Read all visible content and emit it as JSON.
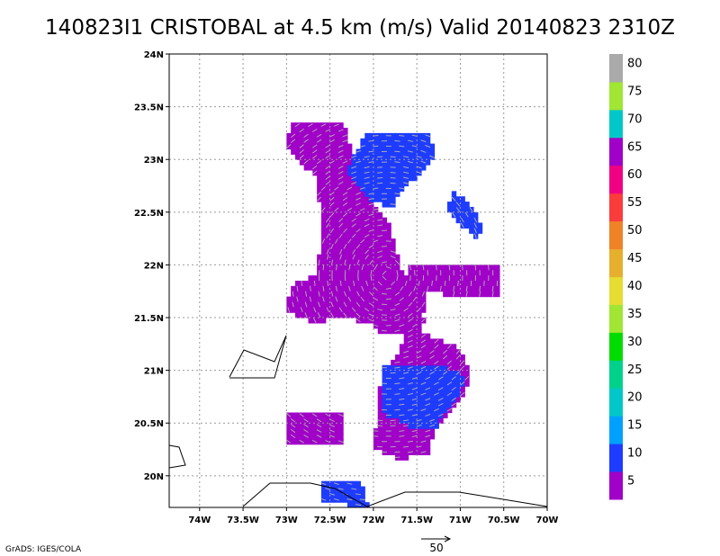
{
  "title": "140823I1 CRISTOBAL at 4.5 km (m/s) Valid 20140823 2310Z",
  "credit": "GrADS: IGES/COLA",
  "reference_vector_label": "50",
  "colors": {
    "border": "#000000",
    "grid": "#999999",
    "arrow": "#aaaaaa"
  },
  "chart_data": {
    "type": "heatmap",
    "title": "140823I1 CRISTOBAL at 4.5 km (m/s) Valid 20140823 2310Z",
    "x_axis": {
      "ticks": [
        -74,
        -73.5,
        -73,
        -72.5,
        -72,
        -71.5,
        -71,
        -70.5,
        -70
      ],
      "tick_labels": [
        "74W",
        "73.5W",
        "73W",
        "72.5W",
        "72W",
        "71.5W",
        "71W",
        "70.5W",
        "70W"
      ],
      "range": [
        -74.35,
        -70
      ]
    },
    "y_axis": {
      "ticks": [
        20,
        20.5,
        21,
        21.5,
        22,
        22.5,
        23,
        23.5,
        24
      ],
      "tick_labels": [
        "20N",
        "20.5N",
        "21N",
        "21.5N",
        "22N",
        "22.5N",
        "23N",
        "23.5N",
        "24N"
      ],
      "range": [
        19.7,
        24
      ]
    },
    "grid": true,
    "colorbar": {
      "levels": [
        5,
        10,
        15,
        20,
        25,
        30,
        35,
        40,
        45,
        50,
        55,
        60,
        65,
        70,
        75,
        80
      ],
      "colors": [
        "#a000c8",
        "#1e3cff",
        "#00a0ff",
        "#00c8c8",
        "#00d28c",
        "#00dc00",
        "#a0e632",
        "#e6dc32",
        "#e6af2d",
        "#f08228",
        "#fa3c3c",
        "#f00082",
        "#a000c8",
        "#00c8c8",
        "#a0e632",
        "#aaaaaa"
      ],
      "labels": [
        "5",
        "10",
        "15",
        "20",
        "25",
        "30",
        "35",
        "40",
        "45",
        "50",
        "55",
        "60",
        "65",
        "70",
        "75",
        "80"
      ]
    },
    "regions": [
      {
        "name": "main-west",
        "bin": 5,
        "polygon": [
          [
            -72.95,
            23.35
          ],
          [
            -72.35,
            23.35
          ],
          [
            -72.2,
            22.95
          ],
          [
            -72.0,
            22.55
          ],
          [
            -71.85,
            22.45
          ],
          [
            -71.7,
            22.0
          ],
          [
            -71.55,
            21.75
          ],
          [
            -71.4,
            21.45
          ],
          [
            -71.65,
            21.35
          ],
          [
            -71.95,
            21.35
          ],
          [
            -72.05,
            21.45
          ],
          [
            -72.4,
            21.5
          ],
          [
            -72.7,
            21.45
          ],
          [
            -73.0,
            21.55
          ],
          [
            -72.95,
            21.8
          ],
          [
            -72.65,
            21.9
          ],
          [
            -72.6,
            22.35
          ],
          [
            -72.65,
            22.85
          ],
          [
            -72.85,
            22.95
          ],
          [
            -73.0,
            23.15
          ]
        ]
      },
      {
        "name": "east-band",
        "bin": 5,
        "polygon": [
          [
            -71.6,
            22.0
          ],
          [
            -71.0,
            22.0
          ],
          [
            -70.55,
            22.0
          ],
          [
            -70.55,
            21.7
          ],
          [
            -71.0,
            21.7
          ],
          [
            -71.4,
            21.75
          ],
          [
            -71.45,
            21.35
          ],
          [
            -71.0,
            21.2
          ],
          [
            -70.9,
            21.0
          ],
          [
            -70.95,
            20.75
          ],
          [
            -71.35,
            20.35
          ],
          [
            -71.35,
            20.2
          ],
          [
            -71.7,
            20.2
          ],
          [
            -71.95,
            20.35
          ],
          [
            -71.95,
            20.8
          ],
          [
            -71.7,
            21.2
          ],
          [
            -71.55,
            21.5
          ]
        ]
      },
      {
        "name": "south-block",
        "bin": 5,
        "polygon": [
          [
            -72.0,
            20.45
          ],
          [
            -71.6,
            20.45
          ],
          [
            -71.35,
            20.55
          ],
          [
            -71.35,
            20.25
          ],
          [
            -71.7,
            20.15
          ],
          [
            -72.0,
            20.25
          ]
        ]
      },
      {
        "name": "north-lobe",
        "bin": 10,
        "polygon": [
          [
            -72.1,
            23.25
          ],
          [
            -71.35,
            23.25
          ],
          [
            -71.3,
            23.0
          ],
          [
            -71.55,
            22.8
          ],
          [
            -71.8,
            22.55
          ],
          [
            -72.05,
            22.6
          ],
          [
            -72.3,
            22.9
          ]
        ]
      },
      {
        "name": "east-arc",
        "bin": 10,
        "polygon": [
          [
            -71.1,
            22.7
          ],
          [
            -70.9,
            22.6
          ],
          [
            -70.75,
            22.35
          ],
          [
            -70.8,
            22.25
          ],
          [
            -71.05,
            22.4
          ],
          [
            -71.15,
            22.55
          ]
        ]
      },
      {
        "name": "southeast-lobe",
        "bin": 10,
        "polygon": [
          [
            -71.9,
            21.05
          ],
          [
            -71.2,
            21.05
          ],
          [
            -70.95,
            20.95
          ],
          [
            -71.0,
            20.75
          ],
          [
            -71.3,
            20.45
          ],
          [
            -71.55,
            20.45
          ],
          [
            -71.9,
            20.6
          ]
        ]
      },
      {
        "name": "west-south-small",
        "bin": 5,
        "polygon": [
          [
            -73.0,
            20.6
          ],
          [
            -72.35,
            20.6
          ],
          [
            -72.35,
            20.3
          ],
          [
            -73.0,
            20.3
          ]
        ]
      },
      {
        "name": "far-south",
        "bin": 10,
        "polygon": [
          [
            -72.6,
            19.95
          ],
          [
            -72.15,
            19.95
          ],
          [
            -72.05,
            19.7
          ],
          [
            -72.6,
            19.75
          ]
        ]
      }
    ]
  }
}
